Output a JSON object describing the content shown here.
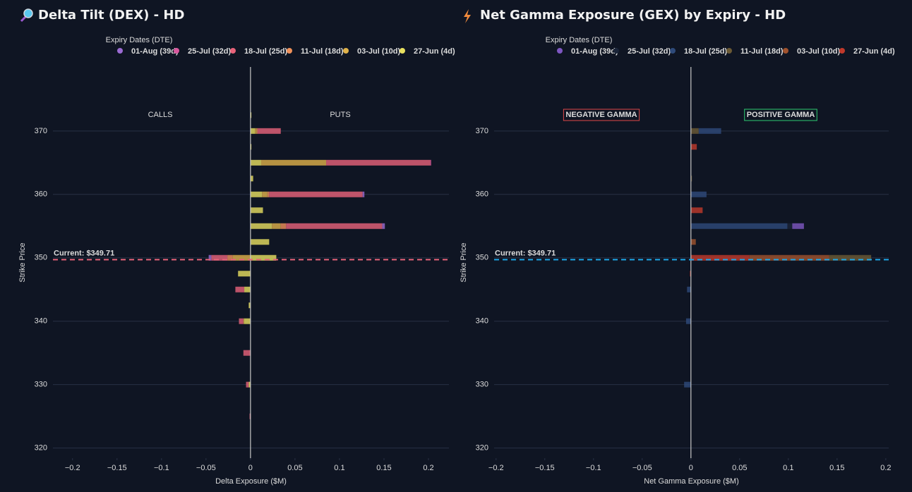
{
  "chart_data": [
    {
      "type": "bar",
      "orientation": "horizontal",
      "title": "Delta Tilt (DEX) - HD",
      "legend_title": "Expiry Dates (DTE)",
      "x_label": "Delta Exposure ($M)",
      "y_label": "Strike Price",
      "side_labels": [
        "CALLS",
        "PUTS"
      ],
      "side_label_colors": [
        "#e6e6e6",
        "#e6e6e6"
      ],
      "side_labels_boxed": false,
      "current_price": 349.71,
      "current_label": "Current: $349.71",
      "current_color": "#e8637a",
      "y": [
        372.5,
        370,
        367.5,
        365,
        362.5,
        360,
        357.5,
        355,
        352.5,
        350,
        347.5,
        345,
        342.5,
        340,
        335,
        330,
        325
      ],
      "series": [
        {
          "name": "01-Aug (39d)",
          "color": "#9b6bd3",
          "values": [
            null,
            null,
            null,
            null,
            null,
            0.002,
            null,
            0.003,
            null,
            -0.003,
            null,
            null,
            null,
            null,
            null,
            null,
            null
          ]
        },
        {
          "name": "25-Jul (32d)",
          "color": "#d9579e",
          "values": [
            null,
            null,
            null,
            0.001,
            null,
            null,
            null,
            null,
            null,
            null,
            null,
            null,
            null,
            null,
            null,
            null,
            null
          ]
        },
        {
          "name": "18-Jul (25d)",
          "color": "#e8637a",
          "values": [
            null,
            0.026,
            null,
            0.117,
            null,
            0.105,
            null,
            0.108,
            null,
            -0.018,
            null,
            -0.01,
            null,
            -0.005,
            -0.008,
            -0.003,
            -0.001
          ]
        },
        {
          "name": "11-Jul (18d)",
          "color": "#f0915a",
          "values": [
            null,
            0.001,
            null,
            null,
            null,
            0.002,
            null,
            0.006,
            null,
            -0.006,
            null,
            null,
            null,
            null,
            null,
            null,
            null
          ]
        },
        {
          "name": "03-Jul (10d)",
          "color": "#e0b24a",
          "values": [
            null,
            0.002,
            null,
            0.073,
            null,
            0.006,
            null,
            0.01,
            null,
            -0.02,
            null,
            null,
            null,
            -0.001,
            null,
            null,
            null
          ]
        },
        {
          "name": "27-Jun (4d)",
          "color": "#e8e060",
          "values": [
            0.001,
            0.005,
            0.001,
            0.012,
            0.003,
            0.013,
            0.014,
            0.024,
            0.021,
            0.029,
            -0.014,
            -0.007,
            -0.002,
            -0.007,
            null,
            -0.002,
            null
          ]
        }
      ],
      "xlim": [
        -0.222,
        0.223
      ],
      "ylim": [
        318.4,
        380.1
      ],
      "xticks": [
        {
          "value": -0.2,
          "label": "−0.2"
        },
        {
          "value": -0.15,
          "label": "−0.15"
        },
        {
          "value": -0.1,
          "label": "−0.1"
        },
        {
          "value": -0.05,
          "label": "−0.05"
        },
        0,
        0.05,
        0.1,
        0.15,
        0.2
      ],
      "yticks": [
        320,
        330,
        340,
        350,
        360,
        370
      ],
      "grid": true
    },
    {
      "type": "bar",
      "orientation": "horizontal",
      "title": "Net Gamma Exposure (GEX) by Expiry - HD",
      "legend_title": "Expiry Dates (DTE)",
      "x_label": "Net Gamma Exposure ($M)",
      "y_label": "Strike Price",
      "side_labels": [
        "NEGATIVE GAMMA",
        "POSITIVE GAMMA"
      ],
      "side_label_colors": [
        "#e04848",
        "#2ecc71"
      ],
      "side_labels_boxed": true,
      "current_price": 349.71,
      "current_label": "Current: $349.71",
      "current_color": "#1ea7e8",
      "y": [
        372.5,
        370,
        367.5,
        365,
        362.5,
        360,
        357.5,
        355,
        352.5,
        350,
        347.5,
        345,
        342.5,
        340,
        335,
        330,
        325
      ],
      "series": [
        {
          "name": "01-Aug (39d)",
          "color": "#7e57c2",
          "values": [
            null,
            null,
            null,
            null,
            null,
            null,
            null,
            0.012,
            null,
            null,
            null,
            null,
            null,
            null,
            null,
            null,
            null
          ]
        },
        {
          "name": "25-Jul (32d)",
          "color": "#1a2438",
          "values": [
            null,
            null,
            null,
            null,
            null,
            null,
            null,
            0.005,
            null,
            null,
            null,
            null,
            null,
            null,
            null,
            null,
            null
          ]
        },
        {
          "name": "18-Jul (25d)",
          "color": "#2e4a7a",
          "values": [
            null,
            0.023,
            null,
            null,
            null,
            0.016,
            null,
            0.099,
            null,
            null,
            null,
            -0.004,
            null,
            -0.005,
            null,
            -0.007,
            null
          ]
        },
        {
          "name": "11-Jul (18d)",
          "color": "#6b5a35",
          "values": [
            null,
            0.008,
            null,
            null,
            0.001,
            null,
            null,
            null,
            null,
            0.043,
            null,
            null,
            null,
            null,
            null,
            null,
            null
          ]
        },
        {
          "name": "03-Jul (10d)",
          "color": "#a0522d",
          "values": [
            null,
            null,
            null,
            null,
            null,
            null,
            null,
            null,
            0.005,
            0.082,
            null,
            null,
            null,
            null,
            null,
            null,
            null
          ]
        },
        {
          "name": "27-Jun (4d)",
          "color": "#c0392b",
          "values": [
            null,
            null,
            0.006,
            null,
            null,
            null,
            0.012,
            null,
            null,
            0.06,
            -0.001,
            null,
            null,
            null,
            null,
            null,
            null
          ]
        }
      ],
      "xlim": [
        -0.202,
        0.203
      ],
      "ylim": [
        318.4,
        380.1
      ],
      "xticks": [
        {
          "value": -0.2,
          "label": "−0.2"
        },
        {
          "value": -0.15,
          "label": "−0.15"
        },
        {
          "value": -0.1,
          "label": "−0.1"
        },
        {
          "value": -0.05,
          "label": "−0.05"
        },
        0,
        0.05,
        0.1,
        0.15,
        0.2
      ],
      "yticks": [
        320,
        330,
        340,
        350,
        360,
        370
      ],
      "grid": true
    }
  ]
}
